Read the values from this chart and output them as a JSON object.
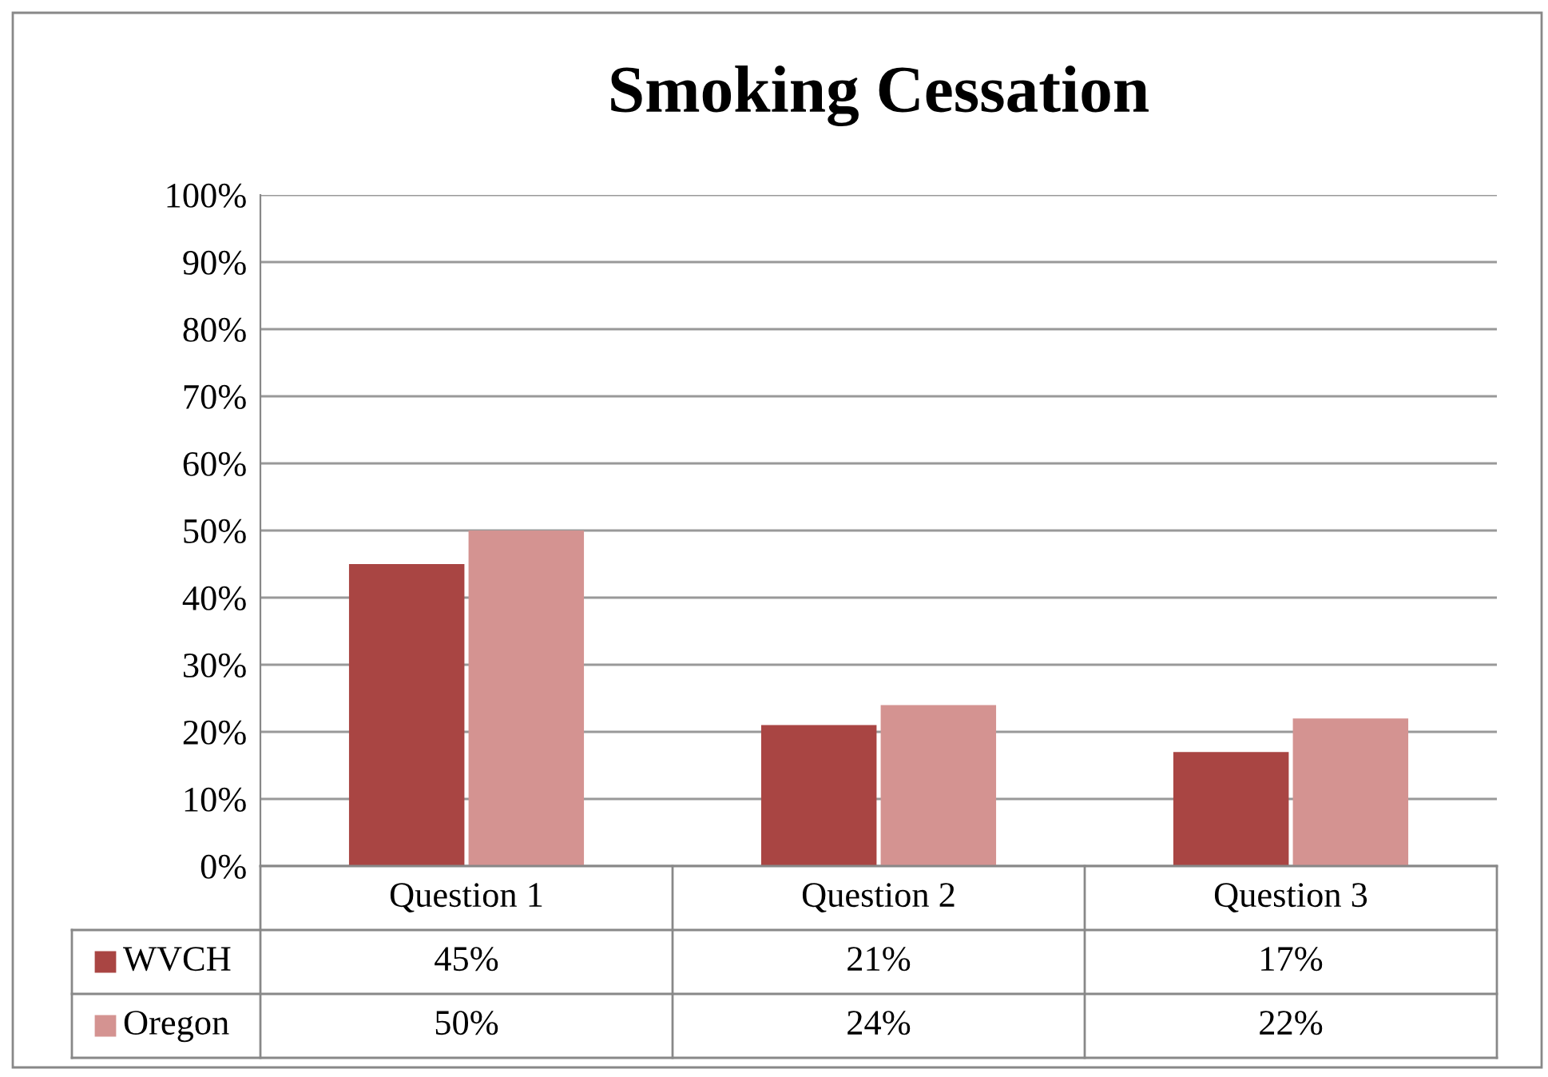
{
  "chart_data": {
    "type": "bar",
    "title": "Smoking Cessation",
    "categories": [
      "Question 1",
      "Question 2",
      "Question 3"
    ],
    "series": [
      {
        "name": "WVCH",
        "color": "#a94543",
        "values": [
          45,
          21,
          17
        ],
        "value_labels": [
          "45%",
          "21%",
          "17%"
        ]
      },
      {
        "name": "Oregon",
        "color": "#d49391",
        "values": [
          50,
          24,
          22
        ],
        "value_labels": [
          "50%",
          "24%",
          "22%"
        ]
      }
    ],
    "ylim": [
      0,
      100
    ],
    "yticks": [
      {
        "value": 0,
        "label": "0%"
      },
      {
        "value": 10,
        "label": "10%"
      },
      {
        "value": 20,
        "label": "20%"
      },
      {
        "value": 30,
        "label": "30%"
      },
      {
        "value": 40,
        "label": "40%"
      },
      {
        "value": 50,
        "label": "50%"
      },
      {
        "value": 60,
        "label": "60%"
      },
      {
        "value": 70,
        "label": "70%"
      },
      {
        "value": 80,
        "label": "80%"
      },
      {
        "value": 90,
        "label": "90%"
      },
      {
        "value": 100,
        "label": "100%"
      }
    ],
    "grid": "y",
    "legend": "bottom"
  }
}
